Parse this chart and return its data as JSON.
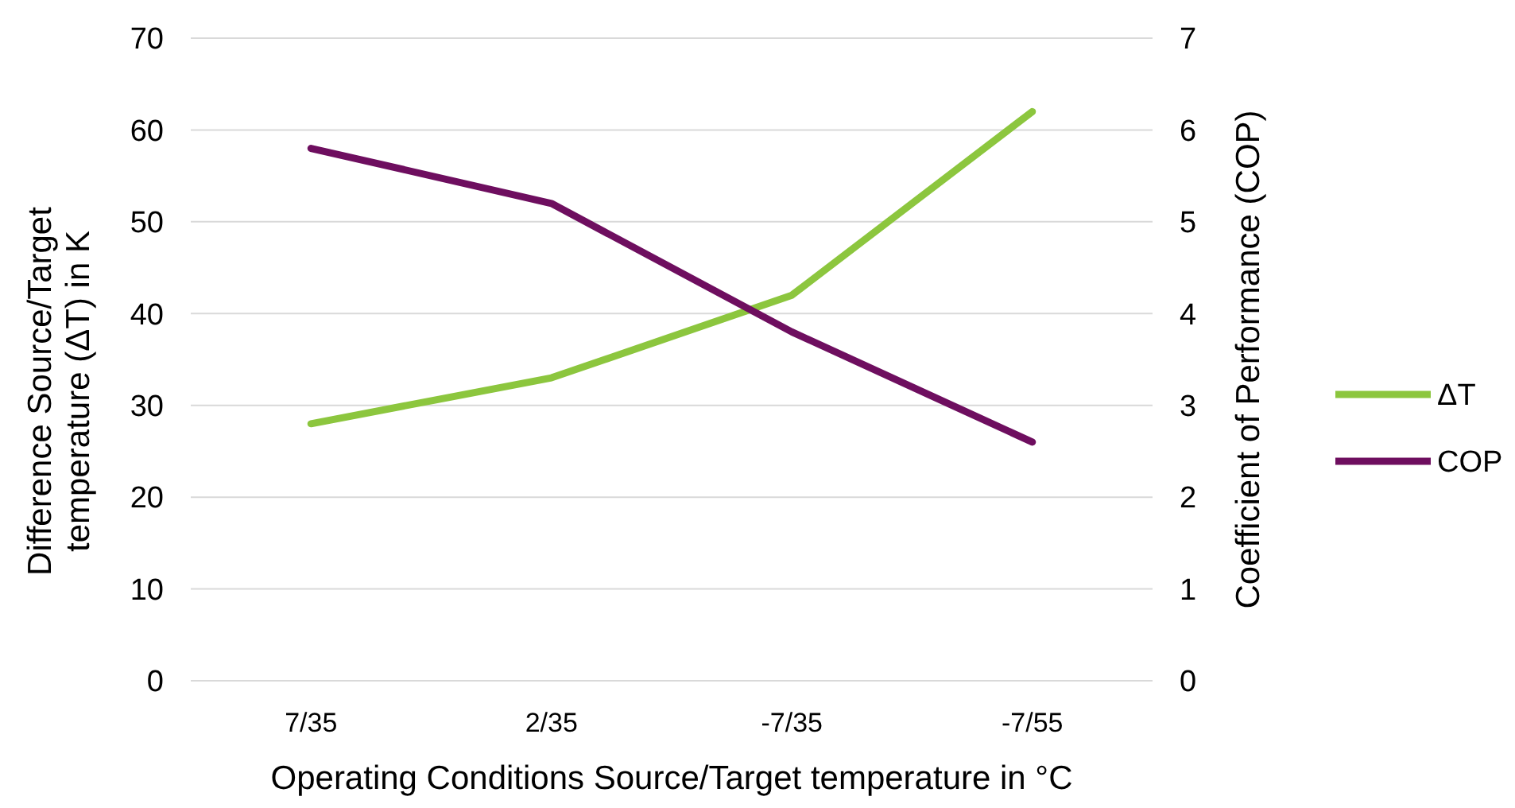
{
  "chart_data": {
    "type": "line",
    "categories": [
      "7/35",
      "2/35",
      "-7/35",
      "-7/55"
    ],
    "xlabel": "Operating Conditions Source/Target temperature in °C",
    "ylabel": "Difference Source/Target temperature (ΔT) in K",
    "y2label": "Coefficient of Performance (COP)",
    "ylim": [
      0,
      70
    ],
    "yticks": [
      0,
      10,
      20,
      30,
      40,
      50,
      60,
      70
    ],
    "y2lim": [
      0,
      7
    ],
    "y2ticks": [
      0,
      1,
      2,
      3,
      4,
      5,
      6,
      7
    ],
    "grid": "y",
    "legend": "right",
    "marker": "none",
    "line_style": "solid",
    "series": [
      {
        "name": "ΔT",
        "color": "#8cc63e",
        "values": [
          28,
          33,
          42,
          62
        ]
      },
      {
        "name": "COP",
        "color": "#6e0e5f",
        "values": [
          5.8,
          5.2,
          3.8,
          2.6
        ],
        "axis": "y2"
      }
    ]
  }
}
